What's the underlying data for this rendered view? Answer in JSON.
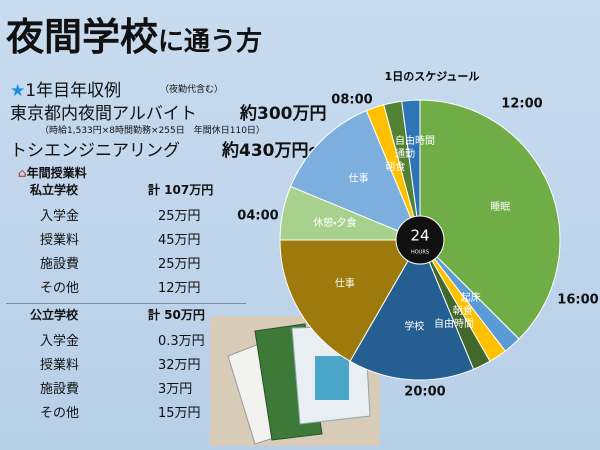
{
  "title": {
    "main": "夜間学校",
    "sub": "に通う方"
  },
  "income": {
    "heading": "1年目年収例",
    "heading_note": "（夜勤代含む）",
    "rows": [
      {
        "label": "東京都内夜間アルバイト",
        "amount": "約300万円",
        "note": "（時給1,533円×8時間勤務×255日　年間休日110日）"
      },
      {
        "label": "トシエンジニアリング",
        "amount": "約430万円〜"
      }
    ]
  },
  "tuition": {
    "heading": "年間授業料",
    "private": {
      "name": "私立学校",
      "total": "計 107万円",
      "rows": [
        [
          "入学金",
          "25万円"
        ],
        [
          "授業料",
          "45万円"
        ],
        [
          "施設費",
          "25万円"
        ],
        [
          "その他",
          "12万円"
        ]
      ]
    },
    "public": {
      "name": "公立学校",
      "total": "計 50万円",
      "rows": [
        [
          "入学金",
          "0.3万円"
        ],
        [
          "授業料",
          "32万円"
        ],
        [
          "施設費",
          "3万円"
        ],
        [
          "その他",
          "15万円"
        ]
      ]
    }
  },
  "chart_data": {
    "type": "pie",
    "title": "1日のスケジュール",
    "center_value": "24",
    "center_unit": "HOURS",
    "clock_labels": [
      "12:00",
      "16:00",
      "20:00",
      "04:00",
      "08:00"
    ],
    "categories": [
      "睡眠",
      "起床",
      "朝食",
      "自由時間",
      "学校",
      "仕事",
      "休憩・夕食",
      "仕事",
      "朝食",
      "通勤",
      "自由時間"
    ],
    "values": [
      9,
      0.5,
      0.5,
      0.5,
      3.5,
      4,
      1.5,
      3,
      0.5,
      0.5,
      0.5
    ],
    "colors": [
      "#70ad47",
      "#5b9bd5",
      "#ffc000",
      "#43682b",
      "#255e91",
      "#9e7a0c",
      "#a9d18e",
      "#7cafdd",
      "#ffc000",
      "#548235",
      "#2e75b6"
    ]
  }
}
